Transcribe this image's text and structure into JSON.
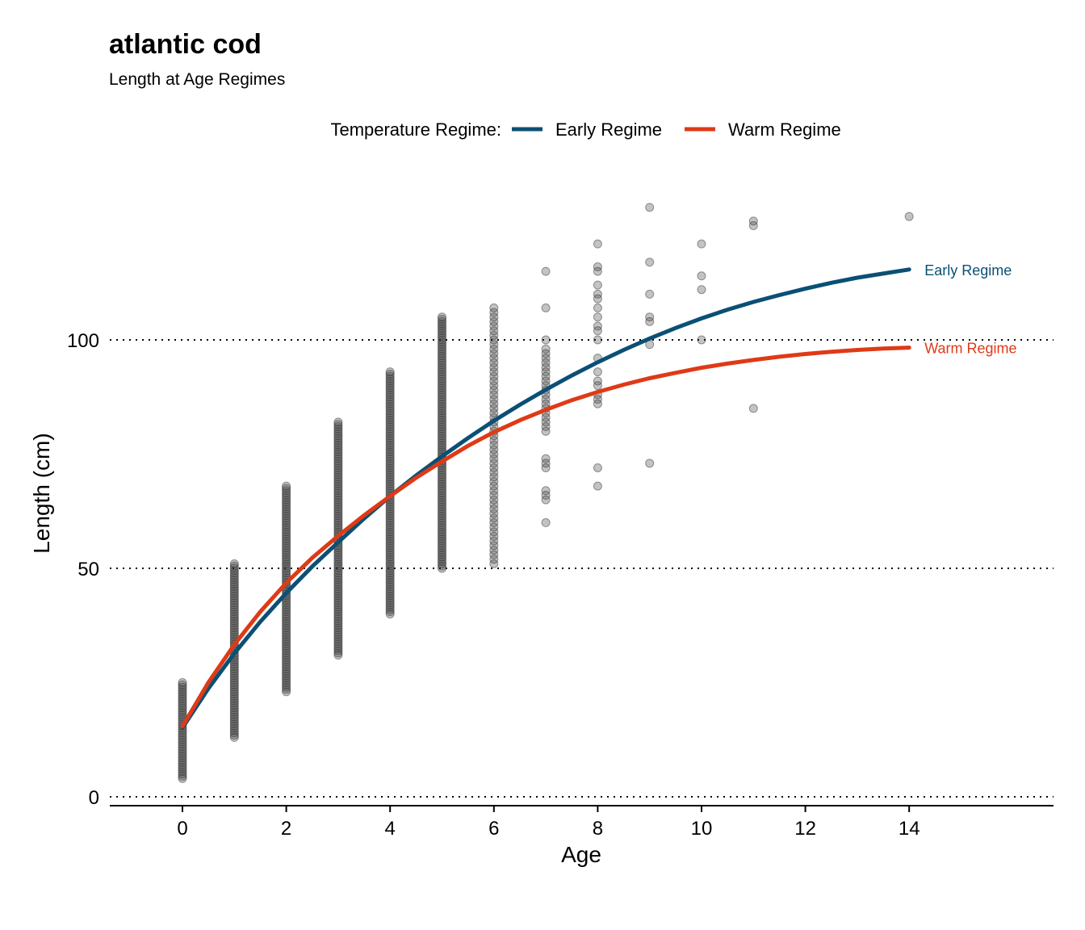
{
  "chart_data": {
    "type": "scatter",
    "title": "atlantic cod",
    "subtitle": "Length at Age Regimes",
    "xlabel": "Age",
    "ylabel": "Length (cm)",
    "xlim": [
      -1.4,
      16.8
    ],
    "ylim": [
      -2,
      130
    ],
    "x_ticks": [
      0,
      2,
      4,
      6,
      8,
      10,
      12,
      14
    ],
    "y_ticks": [
      0,
      50,
      100
    ],
    "grid": "horizontal dotted",
    "legend": {
      "title": "Temperature Regime:",
      "placement": "top-center",
      "entries": [
        "Early Regime",
        "Warm Regime"
      ]
    },
    "colors": {
      "Early Regime": "#0b4f75",
      "Warm Regime": "#de3a17",
      "points": "#444444"
    },
    "observations": [
      {
        "age": 0,
        "min": 4,
        "max": 25,
        "density": 2
      },
      {
        "age": 1,
        "min": 13,
        "max": 51,
        "density": 2
      },
      {
        "age": 2,
        "min": 23,
        "max": 68,
        "density": 2
      },
      {
        "age": 3,
        "min": 31,
        "max": 82,
        "density": 2
      },
      {
        "age": 4,
        "min": 40,
        "max": 93,
        "density": 2
      },
      {
        "age": 5,
        "min": 50,
        "max": 105,
        "density": 2
      },
      {
        "age": 6,
        "min": 51,
        "max": 107,
        "density": 1
      }
    ],
    "scatter_points": [
      {
        "x": 7,
        "y": 115
      },
      {
        "x": 7,
        "y": 107
      },
      {
        "x": 7,
        "y": 100
      },
      {
        "x": 7,
        "y": 98
      },
      {
        "x": 7,
        "y": 97
      },
      {
        "x": 7,
        "y": 96
      },
      {
        "x": 7,
        "y": 95
      },
      {
        "x": 7,
        "y": 94
      },
      {
        "x": 7,
        "y": 93
      },
      {
        "x": 7,
        "y": 92
      },
      {
        "x": 7,
        "y": 91
      },
      {
        "x": 7,
        "y": 90
      },
      {
        "x": 7,
        "y": 89
      },
      {
        "x": 7,
        "y": 88
      },
      {
        "x": 7,
        "y": 87
      },
      {
        "x": 7,
        "y": 86
      },
      {
        "x": 7,
        "y": 85
      },
      {
        "x": 7,
        "y": 84
      },
      {
        "x": 7,
        "y": 83
      },
      {
        "x": 7,
        "y": 82
      },
      {
        "x": 7,
        "y": 81
      },
      {
        "x": 7,
        "y": 80
      },
      {
        "x": 7,
        "y": 74
      },
      {
        "x": 7,
        "y": 73
      },
      {
        "x": 7,
        "y": 72
      },
      {
        "x": 7,
        "y": 67
      },
      {
        "x": 7,
        "y": 66
      },
      {
        "x": 7,
        "y": 65
      },
      {
        "x": 7,
        "y": 60
      },
      {
        "x": 8,
        "y": 121
      },
      {
        "x": 8,
        "y": 116
      },
      {
        "x": 8,
        "y": 115
      },
      {
        "x": 8,
        "y": 112
      },
      {
        "x": 8,
        "y": 110
      },
      {
        "x": 8,
        "y": 109
      },
      {
        "x": 8,
        "y": 107
      },
      {
        "x": 8,
        "y": 105
      },
      {
        "x": 8,
        "y": 103
      },
      {
        "x": 8,
        "y": 102
      },
      {
        "x": 8,
        "y": 100
      },
      {
        "x": 8,
        "y": 96
      },
      {
        "x": 8,
        "y": 93
      },
      {
        "x": 8,
        "y": 91
      },
      {
        "x": 8,
        "y": 90
      },
      {
        "x": 8,
        "y": 88
      },
      {
        "x": 8,
        "y": 87
      },
      {
        "x": 8,
        "y": 86
      },
      {
        "x": 8,
        "y": 72
      },
      {
        "x": 8,
        "y": 68
      },
      {
        "x": 9,
        "y": 129
      },
      {
        "x": 9,
        "y": 117
      },
      {
        "x": 9,
        "y": 110
      },
      {
        "x": 9,
        "y": 105
      },
      {
        "x": 9,
        "y": 104
      },
      {
        "x": 9,
        "y": 99
      },
      {
        "x": 9,
        "y": 73
      },
      {
        "x": 10,
        "y": 121
      },
      {
        "x": 10,
        "y": 114
      },
      {
        "x": 10,
        "y": 111
      },
      {
        "x": 10,
        "y": 100
      },
      {
        "x": 11,
        "y": 126
      },
      {
        "x": 11,
        "y": 125
      },
      {
        "x": 11,
        "y": 85
      },
      {
        "x": 14,
        "y": 127
      }
    ],
    "series": [
      {
        "name": "Early Regime",
        "color": "#0b4f75",
        "x": [
          0,
          0.5,
          1,
          1.5,
          2,
          2.5,
          3,
          3.5,
          4,
          4.5,
          5,
          5.5,
          6,
          6.5,
          7,
          7.5,
          8,
          8.5,
          9,
          9.5,
          10,
          10.5,
          11,
          11.5,
          12,
          12.5,
          13,
          13.5,
          14
        ],
        "y": [
          15.1,
          23.7,
          31.4,
          38.3,
          44.6,
          50.4,
          55.7,
          60.9,
          65.8,
          70.3,
          74.5,
          78.5,
          82.3,
          85.8,
          89.1,
          92.2,
          95.1,
          97.8,
          100.3,
          102.6,
          104.7,
          106.6,
          108.3,
          109.8,
          111.2,
          112.5,
          113.6,
          114.5,
          115.4
        ]
      },
      {
        "name": "Warm Regime",
        "color": "#de3a17",
        "x": [
          0,
          0.5,
          1,
          1.5,
          2,
          2.5,
          3,
          3.5,
          4,
          4.5,
          5,
          5.5,
          6,
          6.5,
          7,
          7.5,
          8,
          8.5,
          9,
          9.5,
          10,
          10.5,
          11,
          11.5,
          12,
          12.5,
          13,
          13.5,
          14
        ],
        "y": [
          15.4,
          25.0,
          33.3,
          40.5,
          46.8,
          52.3,
          57.1,
          61.6,
          65.8,
          69.8,
          73.4,
          76.8,
          79.8,
          82.4,
          84.7,
          86.8,
          88.6,
          90.2,
          91.6,
          92.8,
          93.9,
          94.8,
          95.6,
          96.3,
          96.9,
          97.4,
          97.8,
          98.1,
          98.3
        ]
      }
    ]
  }
}
